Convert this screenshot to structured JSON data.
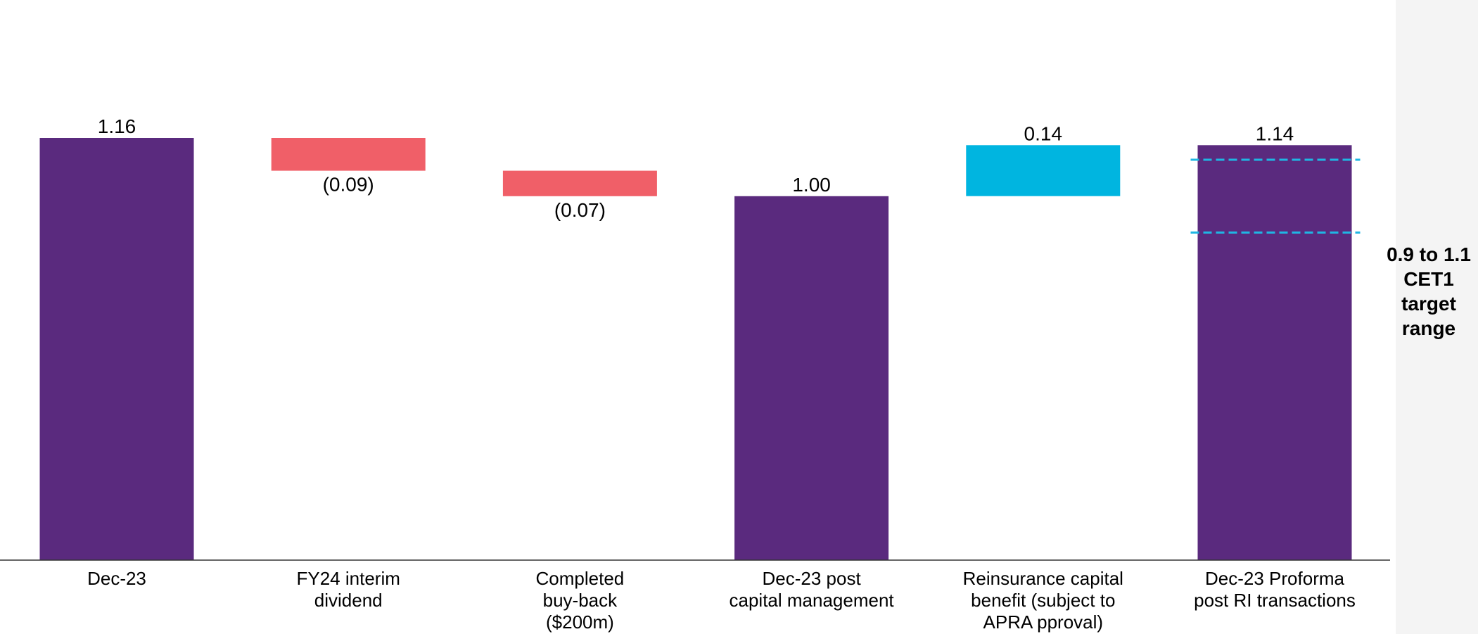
{
  "chart_data": {
    "type": "waterfall",
    "title": "",
    "xlabel": "",
    "ylabel": "",
    "ylim": [
      0,
      1.16
    ],
    "grid": false,
    "categories": [
      [
        "Dec-23"
      ],
      [
        "FY24 interim",
        "dividend"
      ],
      [
        "Completed",
        "buy-back",
        "($200m)"
      ],
      [
        "Dec-23 post",
        "capital management"
      ],
      [
        "Reinsurance capital",
        "benefit (subject to",
        "APRA pproval)"
      ],
      [
        "Dec-23 Proforma",
        "post RI transactions"
      ]
    ],
    "steps": [
      {
        "kind": "total",
        "start": 0,
        "end": 1.16,
        "label": "1.16"
      },
      {
        "kind": "decrease",
        "start": 1.16,
        "end": 1.07,
        "label": "(0.09)"
      },
      {
        "kind": "decrease",
        "start": 1.07,
        "end": 1.0,
        "label": "(0.07)"
      },
      {
        "kind": "total",
        "start": 0,
        "end": 1.0,
        "label": "1.00"
      },
      {
        "kind": "increase",
        "start": 1.0,
        "end": 1.14,
        "label": "0.14"
      },
      {
        "kind": "total",
        "start": 0,
        "end": 1.14,
        "label": "1.14"
      }
    ],
    "target_range": {
      "low": 0.9,
      "high": 1.1,
      "lines": [
        "0.9 to 1.1",
        "CET1",
        "target",
        "range"
      ]
    },
    "colors": {
      "total": "#5a2a7e",
      "decrease": "#f05f68",
      "increase": "#00b5e0",
      "target_line": "#1fb6e3",
      "axis": "#333333"
    }
  }
}
